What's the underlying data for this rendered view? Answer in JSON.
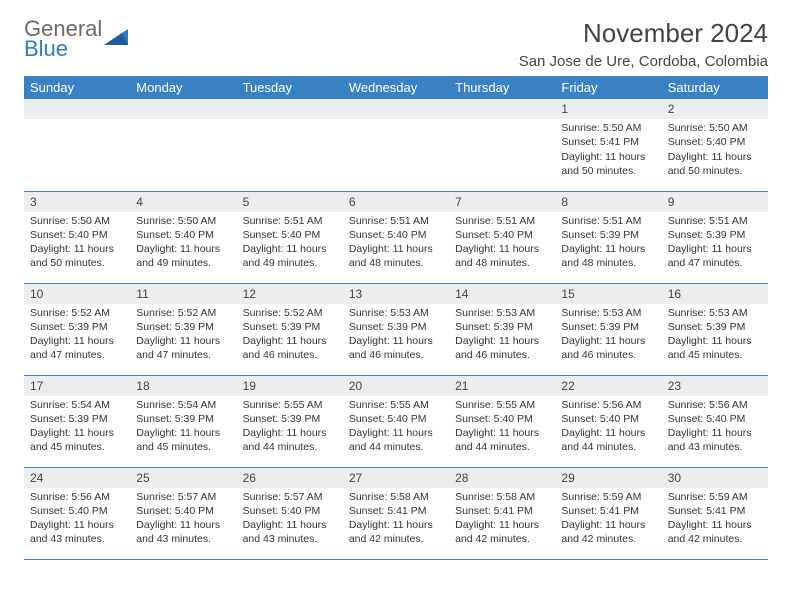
{
  "brand": {
    "word1": "General",
    "word2": "Blue"
  },
  "title": "November 2024",
  "location": "San Jose de Ure, Cordoba, Colombia",
  "colors": {
    "header_bg": "#3a82c4",
    "header_text": "#ffffff",
    "daynum_bg": "#eceded",
    "row_border": "#3a82c4",
    "brand_blue": "#2f78c2",
    "brand_gray": "#6a6a6a"
  },
  "weekdays": [
    "Sunday",
    "Monday",
    "Tuesday",
    "Wednesday",
    "Thursday",
    "Friday",
    "Saturday"
  ],
  "weeks": [
    [
      {
        "n": "",
        "lines": []
      },
      {
        "n": "",
        "lines": []
      },
      {
        "n": "",
        "lines": []
      },
      {
        "n": "",
        "lines": []
      },
      {
        "n": "",
        "lines": []
      },
      {
        "n": "1",
        "lines": [
          "Sunrise: 5:50 AM",
          "Sunset: 5:41 PM",
          "Daylight: 11 hours and 50 minutes."
        ]
      },
      {
        "n": "2",
        "lines": [
          "Sunrise: 5:50 AM",
          "Sunset: 5:40 PM",
          "Daylight: 11 hours and 50 minutes."
        ]
      }
    ],
    [
      {
        "n": "3",
        "lines": [
          "Sunrise: 5:50 AM",
          "Sunset: 5:40 PM",
          "Daylight: 11 hours and 50 minutes."
        ]
      },
      {
        "n": "4",
        "lines": [
          "Sunrise: 5:50 AM",
          "Sunset: 5:40 PM",
          "Daylight: 11 hours and 49 minutes."
        ]
      },
      {
        "n": "5",
        "lines": [
          "Sunrise: 5:51 AM",
          "Sunset: 5:40 PM",
          "Daylight: 11 hours and 49 minutes."
        ]
      },
      {
        "n": "6",
        "lines": [
          "Sunrise: 5:51 AM",
          "Sunset: 5:40 PM",
          "Daylight: 11 hours and 48 minutes."
        ]
      },
      {
        "n": "7",
        "lines": [
          "Sunrise: 5:51 AM",
          "Sunset: 5:40 PM",
          "Daylight: 11 hours and 48 minutes."
        ]
      },
      {
        "n": "8",
        "lines": [
          "Sunrise: 5:51 AM",
          "Sunset: 5:39 PM",
          "Daylight: 11 hours and 48 minutes."
        ]
      },
      {
        "n": "9",
        "lines": [
          "Sunrise: 5:51 AM",
          "Sunset: 5:39 PM",
          "Daylight: 11 hours and 47 minutes."
        ]
      }
    ],
    [
      {
        "n": "10",
        "lines": [
          "Sunrise: 5:52 AM",
          "Sunset: 5:39 PM",
          "Daylight: 11 hours and 47 minutes."
        ]
      },
      {
        "n": "11",
        "lines": [
          "Sunrise: 5:52 AM",
          "Sunset: 5:39 PM",
          "Daylight: 11 hours and 47 minutes."
        ]
      },
      {
        "n": "12",
        "lines": [
          "Sunrise: 5:52 AM",
          "Sunset: 5:39 PM",
          "Daylight: 11 hours and 46 minutes."
        ]
      },
      {
        "n": "13",
        "lines": [
          "Sunrise: 5:53 AM",
          "Sunset: 5:39 PM",
          "Daylight: 11 hours and 46 minutes."
        ]
      },
      {
        "n": "14",
        "lines": [
          "Sunrise: 5:53 AM",
          "Sunset: 5:39 PM",
          "Daylight: 11 hours and 46 minutes."
        ]
      },
      {
        "n": "15",
        "lines": [
          "Sunrise: 5:53 AM",
          "Sunset: 5:39 PM",
          "Daylight: 11 hours and 46 minutes."
        ]
      },
      {
        "n": "16",
        "lines": [
          "Sunrise: 5:53 AM",
          "Sunset: 5:39 PM",
          "Daylight: 11 hours and 45 minutes."
        ]
      }
    ],
    [
      {
        "n": "17",
        "lines": [
          "Sunrise: 5:54 AM",
          "Sunset: 5:39 PM",
          "Daylight: 11 hours and 45 minutes."
        ]
      },
      {
        "n": "18",
        "lines": [
          "Sunrise: 5:54 AM",
          "Sunset: 5:39 PM",
          "Daylight: 11 hours and 45 minutes."
        ]
      },
      {
        "n": "19",
        "lines": [
          "Sunrise: 5:55 AM",
          "Sunset: 5:39 PM",
          "Daylight: 11 hours and 44 minutes."
        ]
      },
      {
        "n": "20",
        "lines": [
          "Sunrise: 5:55 AM",
          "Sunset: 5:40 PM",
          "Daylight: 11 hours and 44 minutes."
        ]
      },
      {
        "n": "21",
        "lines": [
          "Sunrise: 5:55 AM",
          "Sunset: 5:40 PM",
          "Daylight: 11 hours and 44 minutes."
        ]
      },
      {
        "n": "22",
        "lines": [
          "Sunrise: 5:56 AM",
          "Sunset: 5:40 PM",
          "Daylight: 11 hours and 44 minutes."
        ]
      },
      {
        "n": "23",
        "lines": [
          "Sunrise: 5:56 AM",
          "Sunset: 5:40 PM",
          "Daylight: 11 hours and 43 minutes."
        ]
      }
    ],
    [
      {
        "n": "24",
        "lines": [
          "Sunrise: 5:56 AM",
          "Sunset: 5:40 PM",
          "Daylight: 11 hours and 43 minutes."
        ]
      },
      {
        "n": "25",
        "lines": [
          "Sunrise: 5:57 AM",
          "Sunset: 5:40 PM",
          "Daylight: 11 hours and 43 minutes."
        ]
      },
      {
        "n": "26",
        "lines": [
          "Sunrise: 5:57 AM",
          "Sunset: 5:40 PM",
          "Daylight: 11 hours and 43 minutes."
        ]
      },
      {
        "n": "27",
        "lines": [
          "Sunrise: 5:58 AM",
          "Sunset: 5:41 PM",
          "Daylight: 11 hours and 42 minutes."
        ]
      },
      {
        "n": "28",
        "lines": [
          "Sunrise: 5:58 AM",
          "Sunset: 5:41 PM",
          "Daylight: 11 hours and 42 minutes."
        ]
      },
      {
        "n": "29",
        "lines": [
          "Sunrise: 5:59 AM",
          "Sunset: 5:41 PM",
          "Daylight: 11 hours and 42 minutes."
        ]
      },
      {
        "n": "30",
        "lines": [
          "Sunrise: 5:59 AM",
          "Sunset: 5:41 PM",
          "Daylight: 11 hours and 42 minutes."
        ]
      }
    ]
  ]
}
